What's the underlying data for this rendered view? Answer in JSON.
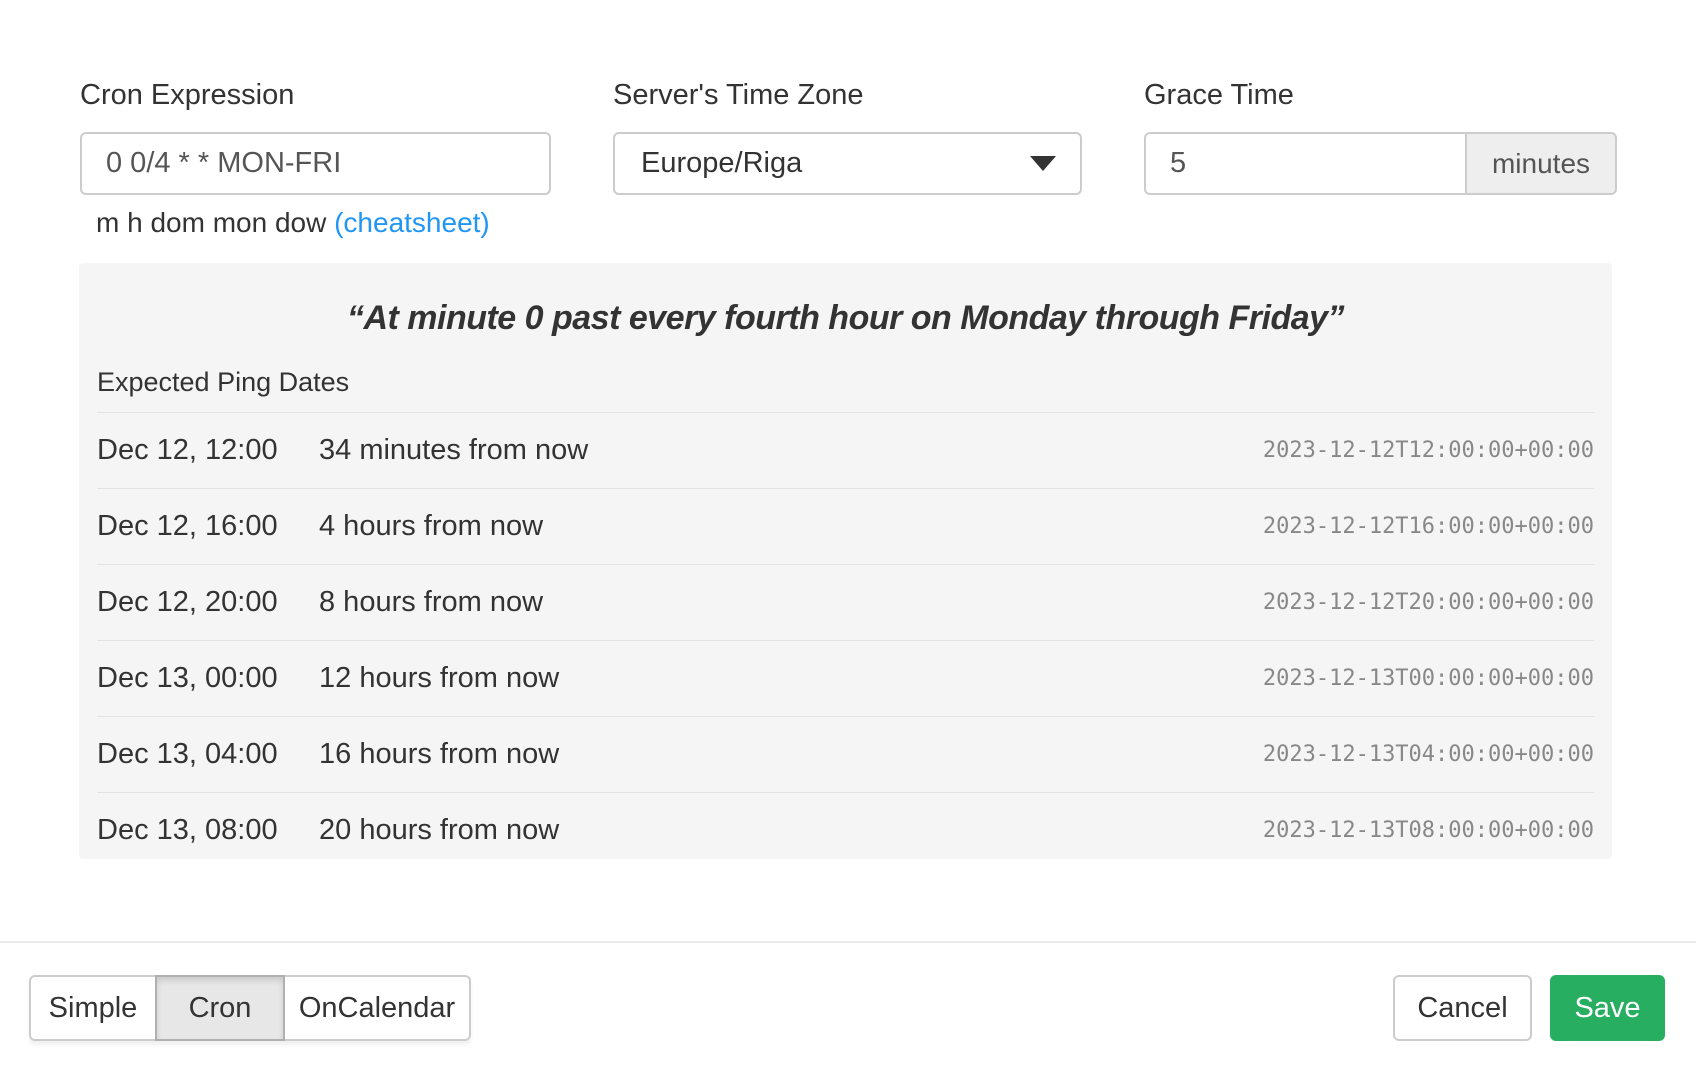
{
  "form": {
    "cron": {
      "label": "Cron Expression",
      "value": "0 0/4 * * MON-FRI",
      "help_prefix": "m h dom mon dow ",
      "help_link": "(cheatsheet)"
    },
    "timezone": {
      "label": "Server's Time Zone",
      "value": "Europe/Riga",
      "caret_icon": "caret-down"
    },
    "grace": {
      "label": "Grace Time",
      "value": "5",
      "unit": "minutes"
    }
  },
  "preview": {
    "description": "“At minute 0 past every fourth hour on Monday through Friday”",
    "subtitle": "Expected Ping Dates",
    "rows": [
      {
        "date": "Dec 12, 12:00",
        "relative": "34 minutes from now",
        "iso": "2023-12-12T12:00:00+00:00"
      },
      {
        "date": "Dec 12, 16:00",
        "relative": "4 hours from now",
        "iso": "2023-12-12T16:00:00+00:00"
      },
      {
        "date": "Dec 12, 20:00",
        "relative": "8 hours from now",
        "iso": "2023-12-12T20:00:00+00:00"
      },
      {
        "date": "Dec 13, 00:00",
        "relative": "12 hours from now",
        "iso": "2023-12-13T00:00:00+00:00"
      },
      {
        "date": "Dec 13, 04:00",
        "relative": "16 hours from now",
        "iso": "2023-12-13T04:00:00+00:00"
      },
      {
        "date": "Dec 13, 08:00",
        "relative": "20 hours from now",
        "iso": "2023-12-13T08:00:00+00:00"
      }
    ]
  },
  "footer": {
    "modes": [
      {
        "label": "Simple",
        "active": false
      },
      {
        "label": "Cron",
        "active": true
      },
      {
        "label": "OnCalendar",
        "active": false
      }
    ],
    "cancel_label": "Cancel",
    "save_label": "Save"
  },
  "colors": {
    "accent_green": "#27ae60",
    "link_blue": "#2196f3",
    "panel_bg": "#f5f5f5"
  }
}
